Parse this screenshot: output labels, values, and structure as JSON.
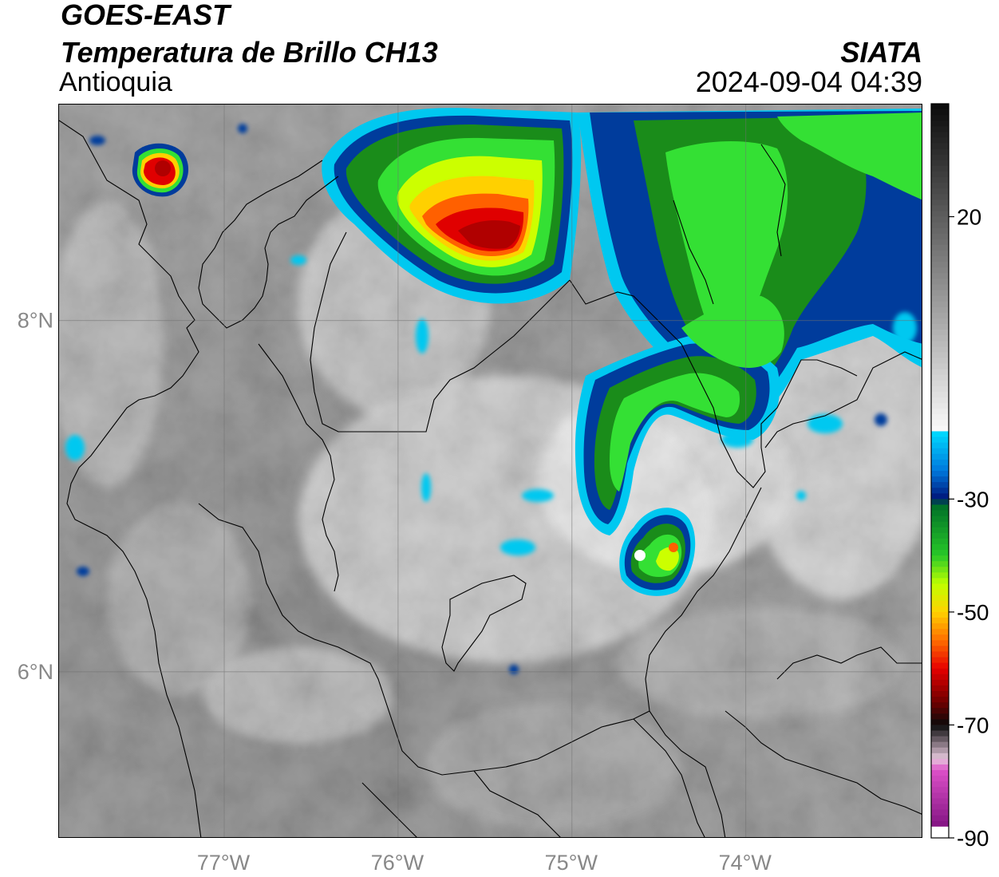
{
  "header": {
    "satellite": "GOES-EAST",
    "product": "Temperatura de Brillo CH13",
    "region": "Antioquia",
    "organization": "SIATA",
    "datetime": "2024-09-04 04:39"
  },
  "map": {
    "lat_range": [
      5.05,
      9.23
    ],
    "lon_range": [
      -77.95,
      -72.98
    ],
    "lat_gridlines": [
      {
        "value": 8,
        "label": "8°N"
      },
      {
        "value": 6,
        "label": "6°N"
      }
    ],
    "lon_gridlines": [
      {
        "value": -77,
        "label": "77°W"
      },
      {
        "value": -76,
        "label": "76°W"
      },
      {
        "value": -75,
        "label": "75°W"
      },
      {
        "value": -74,
        "label": "74°W"
      }
    ]
  },
  "colorbar": {
    "vmin": -90,
    "vmax": 40,
    "ticks": [
      {
        "value": 20,
        "label": "20"
      },
      {
        "value": -30,
        "label": "-30"
      },
      {
        "value": -50,
        "label": "-50"
      },
      {
        "value": -70,
        "label": "-70"
      },
      {
        "value": -90,
        "label": "-90"
      }
    ]
  }
}
